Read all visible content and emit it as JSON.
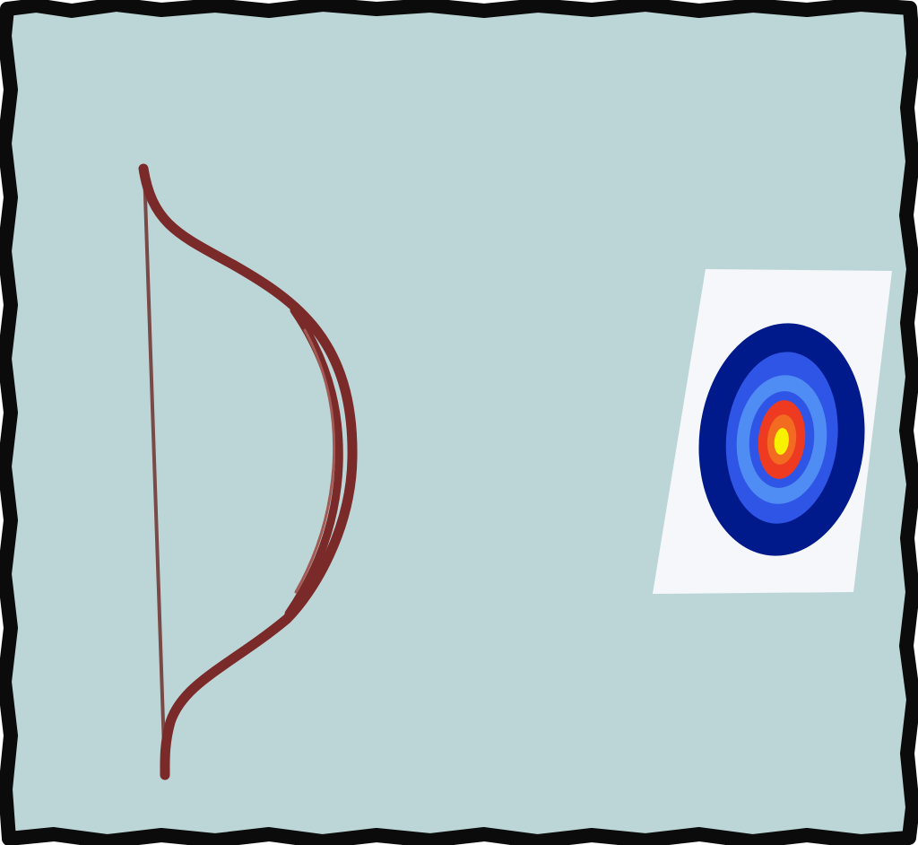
{
  "colors": {
    "background": "#bcd6d8",
    "frame_border": "#0b0b0b",
    "bow_limb": "#7a2a28",
    "bow_limb_highlight": "#a35a55",
    "bow_string": "#7a4a47",
    "target_card": "#f6f7fb",
    "ring_outer": "#001a8c",
    "ring_blue": "#2f55e6",
    "ring_light_blue": "#4f8cf4",
    "ring_red": "#ef3a22",
    "ring_orange": "#f26b20",
    "ring_center": "#f8f200"
  },
  "scene": {
    "objects": [
      {
        "name": "bow",
        "icon": "bow-icon"
      },
      {
        "name": "target",
        "icon": "archery-target-icon"
      }
    ]
  }
}
